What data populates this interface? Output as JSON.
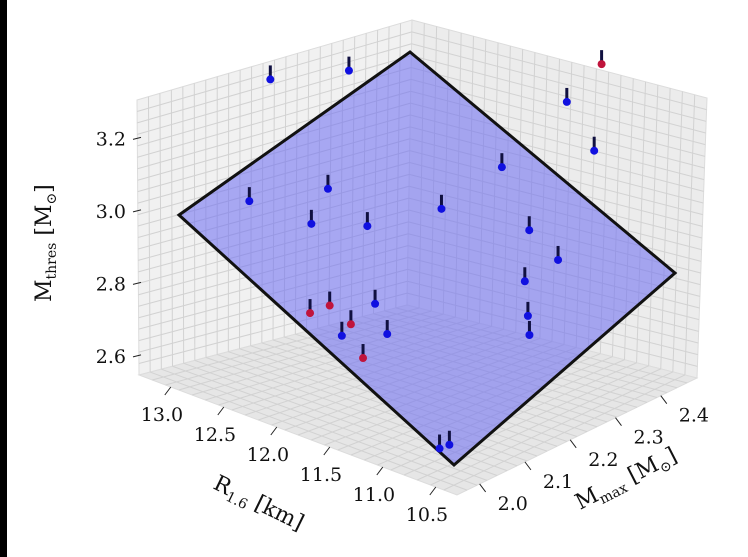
{
  "chart_data": {
    "type": "scatter3d",
    "axes": {
      "x": {
        "label": "R",
        "label_sub": "1.6",
        "label_unit": " [km]",
        "ticks": [
          "13.0",
          "12.5",
          "12.0",
          "11.5",
          "11.0",
          "10.5"
        ],
        "range": [
          10.3,
          13.3
        ]
      },
      "y": {
        "label": "M",
        "label_sub": "max",
        "label_unit": " [M",
        "label_unit_sub": "⊙",
        "label_close": "]",
        "ticks": [
          "2.0",
          "2.1",
          "2.2",
          "2.3",
          "2.4"
        ],
        "range": [
          1.95,
          2.48
        ]
      },
      "z": {
        "label": "M",
        "label_sub": "thres",
        "label_unit": " [M",
        "label_unit_sub": "⊙",
        "label_close": "]",
        "ticks": [
          "2.6",
          "2.8",
          "3.0",
          "3.2"
        ],
        "range": [
          2.55,
          3.35
        ]
      }
    },
    "grid": true,
    "plane": {
      "fill": "#6a6af2",
      "edge": "#111111",
      "description_visible": false
    },
    "series": [
      {
        "color": "#1010e0",
        "points": [
          {
            "R": 13.3,
            "Mmax": 2.24,
            "M": 3.2
          },
          {
            "R": 12.9,
            "Mmax": 2.32,
            "M": 3.22
          },
          {
            "R": 12.9,
            "Mmax": 2.1,
            "M": 2.99
          },
          {
            "R": 12.5,
            "Mmax": 2.18,
            "M": 3.02
          },
          {
            "R": 12.4,
            "Mmax": 2.12,
            "M": 2.97
          },
          {
            "R": 12.0,
            "Mmax": 2.15,
            "M": 2.99
          },
          {
            "R": 11.6,
            "Mmax": 2.22,
            "M": 3.04
          },
          {
            "R": 11.5,
            "Mmax": 2.33,
            "M": 3.1
          },
          {
            "R": 11.4,
            "Mmax": 2.45,
            "M": 3.22
          },
          {
            "R": 11.6,
            "Mmax": 2.0,
            "M": 2.82
          },
          {
            "R": 11.5,
            "Mmax": 2.05,
            "M": 2.89
          },
          {
            "R": 11.3,
            "Mmax": 2.03,
            "M": 2.84
          },
          {
            "R": 10.9,
            "Mmax": 2.25,
            "M": 3.04
          },
          {
            "R": 10.8,
            "Mmax": 2.37,
            "M": 3.2
          },
          {
            "R": 10.6,
            "Mmax": 2.17,
            "M": 2.98
          },
          {
            "R": 10.5,
            "Mmax": 2.22,
            "M": 3.02
          },
          {
            "R": 10.4,
            "Mmax": 2.13,
            "M": 2.93
          },
          {
            "R": 10.3,
            "Mmax": 2.11,
            "M": 2.9
          },
          {
            "R": 10.5,
            "Mmax": 1.98,
            "M": 2.65
          },
          {
            "R": 10.55,
            "Mmax": 1.97,
            "M": 2.64
          }
        ]
      },
      {
        "color": "#c0143c",
        "points": [
          {
            "R": 11.9,
            "Mmax": 2.0,
            "M": 2.85
          },
          {
            "R": 11.8,
            "Mmax": 2.02,
            "M": 2.87
          },
          {
            "R": 11.6,
            "Mmax": 2.02,
            "M": 2.84
          },
          {
            "R": 11.4,
            "Mmax": 2.0,
            "M": 2.78
          },
          {
            "R": 11.2,
            "Mmax": 2.48,
            "M": 3.33
          }
        ]
      }
    ]
  }
}
